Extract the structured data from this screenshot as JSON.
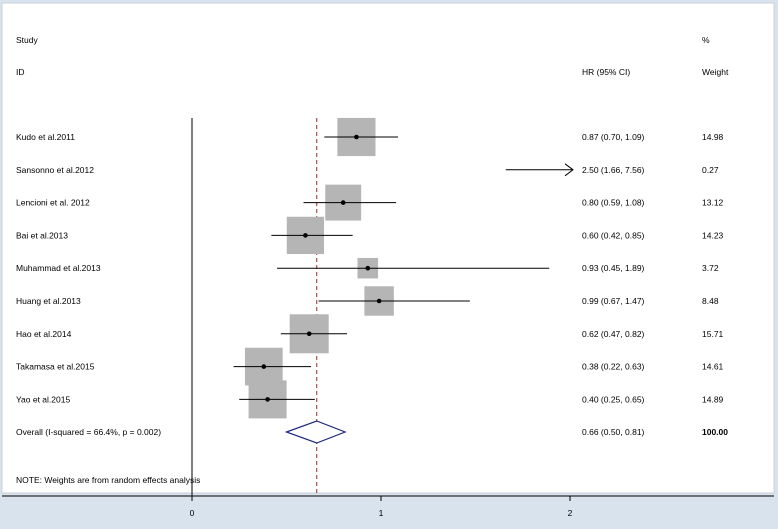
{
  "chart_data": {
    "type": "forest",
    "header": {
      "study_label": "Study",
      "id_label": "ID",
      "estimate_label": "HR (95% CI)",
      "percent_label": "%",
      "weight_label": "Weight"
    },
    "studies": [
      {
        "id": "Kudo et al.2011",
        "hr": 0.87,
        "lo": 0.7,
        "hi": 1.09,
        "ci_text": "0.87 (0.70, 1.09)",
        "weight": 14.98,
        "weight_text": "14.98"
      },
      {
        "id": "Sansonno et al.2012",
        "hr": 2.5,
        "lo": 1.66,
        "hi": 7.56,
        "ci_text": "2.50 (1.66, 7.56)",
        "weight": 0.27,
        "weight_text": "0.27",
        "arrow": true
      },
      {
        "id": "Lencioni et al. 2012",
        "hr": 0.8,
        "lo": 0.59,
        "hi": 1.08,
        "ci_text": "0.80 (0.59, 1.08)",
        "weight": 13.12,
        "weight_text": "13.12"
      },
      {
        "id": "Bai et al.2013",
        "hr": 0.6,
        "lo": 0.42,
        "hi": 0.85,
        "ci_text": "0.60 (0.42, 0.85)",
        "weight": 14.23,
        "weight_text": "14.23"
      },
      {
        "id": "Muhammad et al.2013",
        "hr": 0.93,
        "lo": 0.45,
        "hi": 1.89,
        "ci_text": "0.93 (0.45, 1.89)",
        "weight": 3.72,
        "weight_text": "3.72"
      },
      {
        "id": "Huang et al.2013",
        "hr": 0.99,
        "lo": 0.67,
        "hi": 1.47,
        "ci_text": "0.99 (0.67, 1.47)",
        "weight": 8.48,
        "weight_text": "8.48"
      },
      {
        "id": "Hao et al.2014",
        "hr": 0.62,
        "lo": 0.47,
        "hi": 0.82,
        "ci_text": "0.62 (0.47, 0.82)",
        "weight": 15.71,
        "weight_text": "15.71"
      },
      {
        "id": "Takamasa et al.2015",
        "hr": 0.38,
        "lo": 0.22,
        "hi": 0.63,
        "ci_text": "0.38 (0.22, 0.63)",
        "weight": 14.61,
        "weight_text": "14.61"
      },
      {
        "id": "Yao et al.2015",
        "hr": 0.4,
        "lo": 0.25,
        "hi": 0.65,
        "ci_text": "0.40 (0.25, 0.65)",
        "weight": 14.89,
        "weight_text": "14.89"
      }
    ],
    "overall": {
      "id": "Overall  (I-squared = 66.4%, p = 0.002)",
      "hr": 0.66,
      "lo": 0.5,
      "hi": 0.81,
      "ci_text": "0.66 (0.50, 0.81)",
      "weight_text": "100.00"
    },
    "note": "NOTE: Weights are from random effects analysis",
    "x_axis": {
      "range": [
        0,
        2
      ],
      "ticks": [
        0,
        1,
        2
      ],
      "tick_labels": [
        "0",
        "1",
        "2"
      ]
    },
    "reference_line": 0,
    "overall_line_dashed": true,
    "colors": {
      "background": "#d9e3ee",
      "plot_area": "#ffffff",
      "box": "#b5b5b5",
      "ci_line": "#000000",
      "diamond": "#1f2a80",
      "dashed_line": "#a0282a"
    }
  }
}
